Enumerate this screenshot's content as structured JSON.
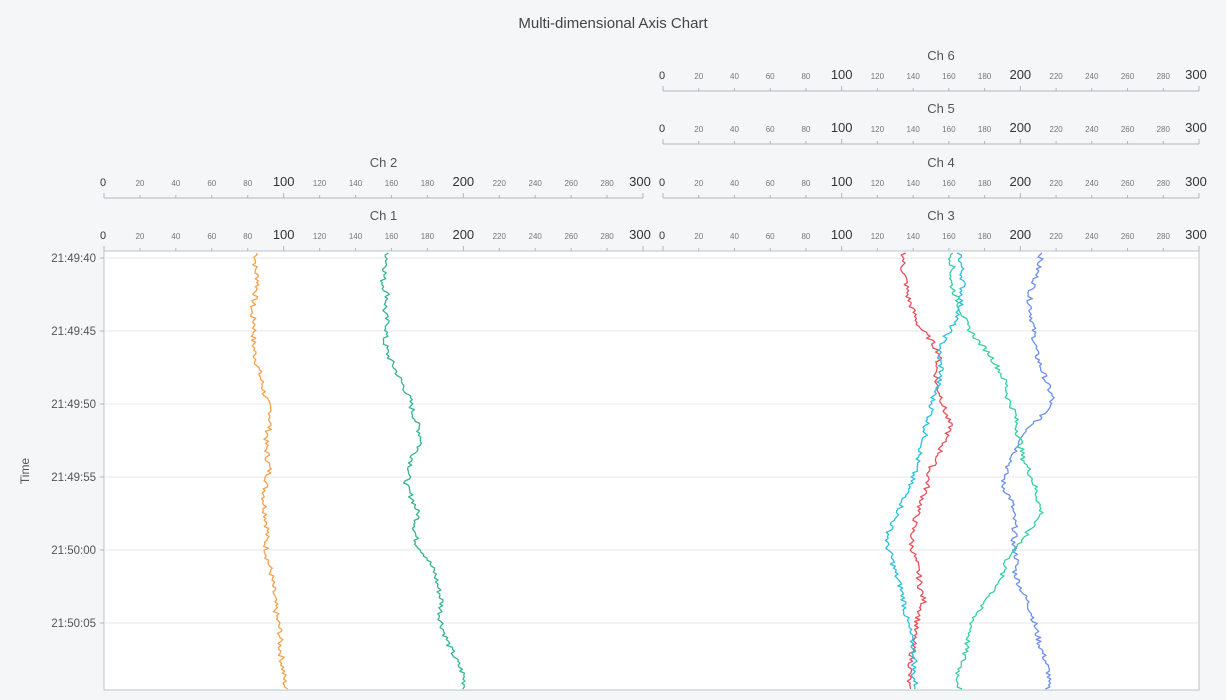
{
  "chart_data": {
    "type": "line",
    "title": "Multi-dimensional Axis Chart",
    "ylabel": "Time",
    "y_tick_labels": [
      "21:49:40",
      "21:49:45",
      "21:49:50",
      "21:49:55",
      "21:50:00",
      "21:50:05"
    ],
    "y_range_seconds": [
      0,
      30
    ],
    "x_axes": [
      {
        "name": "Ch 1",
        "range": [
          0,
          300
        ],
        "row": "bottom",
        "column": "left"
      },
      {
        "name": "Ch 2",
        "range": [
          0,
          300
        ],
        "row": "second",
        "column": "left"
      },
      {
        "name": "Ch 3",
        "range": [
          0,
          300
        ],
        "row": "bottom",
        "column": "right"
      },
      {
        "name": "Ch 4",
        "range": [
          0,
          300
        ],
        "row": "second",
        "column": "right"
      },
      {
        "name": "Ch 5",
        "range": [
          0,
          300
        ],
        "row": "third",
        "column": "right"
      },
      {
        "name": "Ch 6",
        "range": [
          0,
          300
        ],
        "row": "fourth",
        "column": "right"
      }
    ],
    "x_tick_labels": [
      "0",
      "20",
      "40",
      "60",
      "80",
      "100",
      "120",
      "140",
      "160",
      "180",
      "200",
      "220",
      "240",
      "260",
      "280",
      "300"
    ],
    "series": [
      {
        "axis": "Ch 1",
        "color": "#f7a04b",
        "values": [
          85,
          84,
          86,
          84,
          82,
          84,
          83,
          84,
          86,
          88,
          90,
          93,
          92,
          90,
          91,
          92,
          90,
          89,
          90,
          91,
          90,
          91,
          93,
          94,
          95,
          96,
          98,
          98,
          99,
          100,
          101
        ]
      },
      {
        "axis": "Ch 2",
        "color": "#34b68f",
        "values": [
          158,
          157,
          155,
          158,
          156,
          158,
          156,
          158,
          162,
          166,
          170,
          172,
          175,
          177,
          172,
          170,
          168,
          172,
          175,
          173,
          174,
          180,
          184,
          186,
          188,
          187,
          189,
          192,
          196,
          200,
          201
        ]
      },
      {
        "axis": "Ch 3",
        "color": "#6e8ff0",
        "values": [
          212,
          210,
          208,
          205,
          206,
          207,
          208,
          209,
          212,
          215,
          218,
          214,
          205,
          200,
          196,
          192,
          190,
          195,
          196,
          197,
          196,
          198,
          197,
          200,
          204,
          207,
          209,
          211,
          214,
          216,
          215
        ]
      },
      {
        "axis": "Ch 4",
        "color": "#e9505a",
        "values": [
          135,
          134,
          136,
          137,
          140,
          143,
          150,
          155,
          153,
          153,
          156,
          158,
          161,
          157,
          154,
          149,
          148,
          145,
          142,
          140,
          139,
          141,
          143,
          144,
          146,
          143,
          141,
          140,
          139,
          138,
          137
        ]
      },
      {
        "axis": "Ch 5",
        "color": "#29c0e0",
        "values": [
          166,
          167,
          168,
          167,
          166,
          162,
          157,
          154,
          156,
          154,
          151,
          150,
          147,
          146,
          143,
          141,
          138,
          135,
          131,
          127,
          125,
          128,
          130,
          133,
          135,
          136,
          138,
          140,
          141,
          140,
          142
        ]
      },
      {
        "axis": "Ch 6",
        "color": "#33d1a3",
        "values": [
          161,
          162,
          161,
          164,
          167,
          170,
          176,
          183,
          188,
          192,
          193,
          197,
          198,
          200,
          201,
          205,
          208,
          210,
          212,
          205,
          200,
          193,
          190,
          187,
          180,
          174,
          172,
          170,
          168,
          165,
          166
        ]
      }
    ]
  }
}
